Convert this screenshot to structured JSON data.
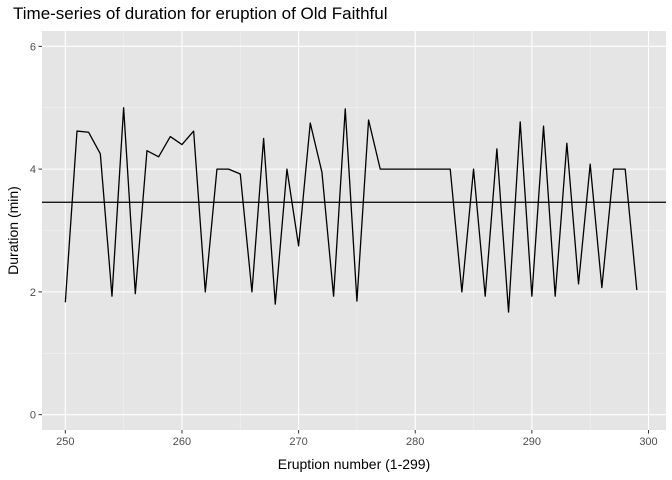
{
  "chart_data": {
    "type": "line",
    "title": "Time-series of duration for eruption of Old Faithful",
    "xlabel": "Eruption number (1-299)",
    "ylabel": "Duration  (min)",
    "xlim": [
      248,
      301.5
    ],
    "ylim": [
      -0.25,
      6.25
    ],
    "xticks": [
      250,
      260,
      270,
      280,
      290,
      300
    ],
    "yticks": [
      0,
      2,
      4,
      6
    ],
    "grid": true,
    "hline": 3.46,
    "series": [
      {
        "x": [
          250,
          251,
          252,
          253,
          254,
          255,
          256,
          257,
          258,
          259,
          260,
          261,
          262,
          263,
          264,
          265,
          266,
          267,
          268,
          269,
          270,
          271,
          272,
          273,
          274,
          275,
          276,
          277,
          278,
          279,
          280,
          281,
          282,
          283,
          284,
          285,
          286,
          287,
          288,
          289,
          290,
          291,
          292,
          293,
          294,
          295,
          296,
          297,
          298,
          299
        ],
        "values": [
          1.83,
          4.62,
          4.6,
          4.25,
          1.93,
          5.0,
          1.97,
          4.3,
          4.2,
          4.53,
          4.4,
          4.62,
          2.0,
          4.0,
          4.0,
          3.92,
          2.0,
          4.5,
          1.8,
          4.0,
          2.75,
          4.75,
          3.95,
          1.93,
          4.98,
          1.85,
          4.8,
          4.0,
          4.0,
          4.0,
          4.0,
          4.0,
          4.0,
          4.0,
          2.0,
          4.0,
          1.93,
          4.33,
          1.67,
          4.77,
          1.93,
          4.7,
          1.93,
          4.42,
          2.13,
          4.08,
          2.07,
          4.0,
          4.0,
          2.03
        ]
      }
    ]
  }
}
